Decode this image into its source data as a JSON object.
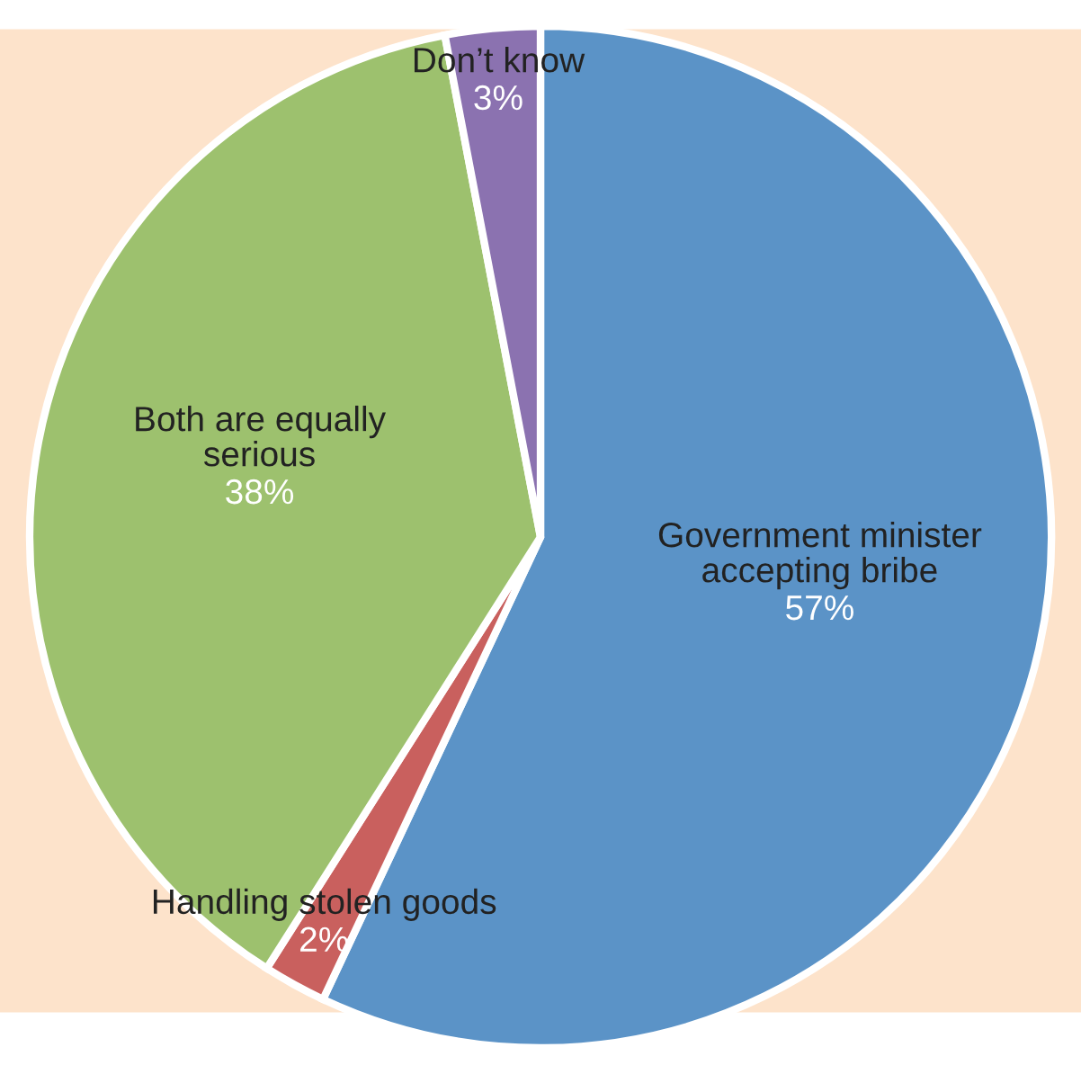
{
  "chart_data": {
    "type": "pie",
    "categories": [
      "Government minister\naccepting bribe",
      "Handling stolen goods",
      "Both are equally\nserious",
      "Don’t know"
    ],
    "values": [
      57,
      2,
      38,
      3
    ],
    "value_labels": [
      "57%",
      "2%",
      "38%",
      "3%"
    ],
    "colors": [
      "#5b93c7",
      "#c9605e",
      "#9dc16e",
      "#8b72b0"
    ]
  }
}
